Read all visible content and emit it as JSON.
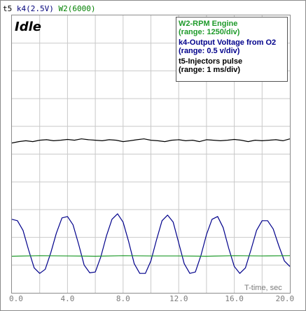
{
  "header": {
    "items": [
      {
        "text": "t5",
        "color": "#000000"
      },
      {
        "text": "k4(2.5V)",
        "color": "#00007a"
      },
      {
        "text": "W2(6000)",
        "color": "#008000"
      }
    ]
  },
  "mode_label": "Idle",
  "info_box": {
    "w2_title": "W2-RPM Engine",
    "w2_range": "(range: 1250/div)",
    "k4_title": "k4-Output Voltage from O2",
    "k4_range": "(range: 0.5 v/div)",
    "t5_title": "t5-Injectors pulse",
    "t5_range": "(range: 1 ms/div)"
  },
  "chart_data": {
    "type": "line",
    "xlabel": "T-time, sec",
    "xlim": [
      0,
      20
    ],
    "ylim": [
      0,
      10
    ],
    "x_ticks": [
      "0.0",
      "4.0",
      "8.0",
      "12.0",
      "16.0",
      "20.0"
    ],
    "grid": true,
    "series": [
      {
        "name": "t5",
        "color": "#000000",
        "x": [
          0,
          0.5,
          1,
          1.5,
          2,
          2.5,
          3,
          3.5,
          4,
          4.5,
          5,
          5.5,
          6,
          6.5,
          7,
          7.5,
          8,
          8.5,
          9,
          9.5,
          10,
          10.5,
          11,
          11.5,
          12,
          12.5,
          13,
          13.5,
          14,
          14.5,
          15,
          15.5,
          16,
          16.5,
          17,
          17.5,
          18,
          18.5,
          19,
          19.5,
          20
        ],
        "values": [
          5.4,
          5.45,
          5.48,
          5.45,
          5.5,
          5.52,
          5.48,
          5.5,
          5.53,
          5.5,
          5.55,
          5.52,
          5.5,
          5.48,
          5.52,
          5.5,
          5.45,
          5.48,
          5.52,
          5.55,
          5.5,
          5.48,
          5.45,
          5.5,
          5.52,
          5.48,
          5.5,
          5.45,
          5.52,
          5.5,
          5.48,
          5.5,
          5.53,
          5.5,
          5.45,
          5.5,
          5.48,
          5.5,
          5.52,
          5.48,
          5.55
        ]
      },
      {
        "name": "k4",
        "color": "#00008b",
        "x": [
          0,
          0.4,
          0.8,
          1.2,
          1.6,
          2,
          2.4,
          2.8,
          3.2,
          3.6,
          4,
          4.4,
          4.8,
          5.2,
          5.6,
          6,
          6.4,
          6.8,
          7.2,
          7.6,
          8,
          8.4,
          8.8,
          9.2,
          9.6,
          10,
          10.4,
          10.8,
          11.2,
          11.6,
          12,
          12.4,
          12.8,
          13.2,
          13.6,
          14,
          14.4,
          14.8,
          15.2,
          15.6,
          16,
          16.4,
          16.8,
          17.2,
          17.6,
          18,
          18.4,
          18.8,
          19.2,
          19.6,
          20
        ],
        "values": [
          2.65,
          2.6,
          2.25,
          1.55,
          0.9,
          0.7,
          0.85,
          1.45,
          2.15,
          2.7,
          2.75,
          2.45,
          1.75,
          1.0,
          0.72,
          0.75,
          1.3,
          2.05,
          2.65,
          2.85,
          2.55,
          1.85,
          1.05,
          0.7,
          0.7,
          1.15,
          1.9,
          2.6,
          2.8,
          2.55,
          1.8,
          1.05,
          0.7,
          0.75,
          1.35,
          2.1,
          2.65,
          2.75,
          2.35,
          1.6,
          0.95,
          0.7,
          0.9,
          1.55,
          2.25,
          2.6,
          2.6,
          2.3,
          1.7,
          1.15,
          0.95
        ]
      },
      {
        "name": "W2",
        "color": "#1e9a2a",
        "x": [
          0,
          2,
          4,
          6,
          8,
          10,
          12,
          14,
          16,
          18,
          20
        ],
        "values": [
          1.32,
          1.34,
          1.33,
          1.32,
          1.34,
          1.33,
          1.33,
          1.32,
          1.34,
          1.33,
          1.34
        ]
      }
    ]
  }
}
